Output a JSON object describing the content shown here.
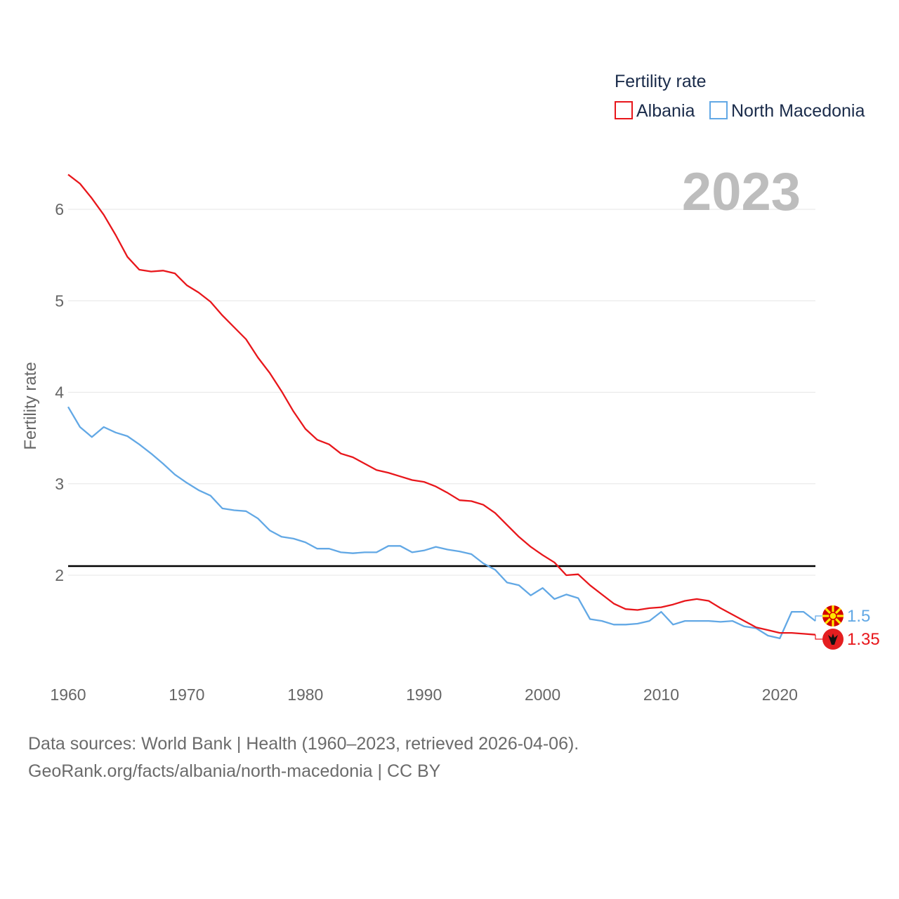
{
  "chart_data": {
    "type": "line",
    "title": "Fertility rate",
    "current_year": "2023",
    "ylabel": "Fertility rate",
    "xlabel": "",
    "xlim": [
      1960,
      2023
    ],
    "ylim": [
      1,
      6.5
    ],
    "yticks": [
      2,
      3,
      4,
      5,
      6
    ],
    "xticks": [
      1960,
      1970,
      1980,
      1990,
      2000,
      2010,
      2020
    ],
    "reference_line": 2.1,
    "x": [
      1960,
      1961,
      1962,
      1963,
      1964,
      1965,
      1966,
      1967,
      1968,
      1969,
      1970,
      1971,
      1972,
      1973,
      1974,
      1975,
      1976,
      1977,
      1978,
      1979,
      1980,
      1981,
      1982,
      1983,
      1984,
      1985,
      1986,
      1987,
      1988,
      1989,
      1990,
      1991,
      1992,
      1993,
      1994,
      1995,
      1996,
      1997,
      1998,
      1999,
      2000,
      2001,
      2002,
      2003,
      2004,
      2005,
      2006,
      2007,
      2008,
      2009,
      2010,
      2011,
      2012,
      2013,
      2014,
      2015,
      2016,
      2017,
      2018,
      2019,
      2020,
      2021,
      2022,
      2023
    ],
    "series": [
      {
        "name": "Albania",
        "color": "#e8161b",
        "end_label": "1.35",
        "values": [
          6.38,
          6.28,
          6.12,
          5.94,
          5.72,
          5.48,
          5.34,
          5.32,
          5.33,
          5.3,
          5.17,
          5.09,
          4.99,
          4.84,
          4.71,
          4.58,
          4.38,
          4.21,
          4.01,
          3.79,
          3.6,
          3.48,
          3.43,
          3.33,
          3.29,
          3.22,
          3.15,
          3.12,
          3.08,
          3.04,
          3.02,
          2.97,
          2.9,
          2.82,
          2.81,
          2.77,
          2.68,
          2.55,
          2.42,
          2.31,
          2.22,
          2.14,
          2.0,
          2.01,
          1.89,
          1.79,
          1.69,
          1.63,
          1.62,
          1.64,
          1.65,
          1.68,
          1.72,
          1.74,
          1.72,
          1.64,
          1.57,
          1.5,
          1.43,
          1.4,
          1.37,
          1.37,
          1.36,
          1.35
        ]
      },
      {
        "name": "North Macedonia",
        "color": "#62a8e5",
        "end_label": "1.5",
        "values": [
          3.84,
          3.62,
          3.51,
          3.62,
          3.56,
          3.52,
          3.43,
          3.33,
          3.22,
          3.1,
          3.01,
          2.93,
          2.87,
          2.73,
          2.71,
          2.7,
          2.62,
          2.49,
          2.42,
          2.4,
          2.36,
          2.29,
          2.29,
          2.25,
          2.24,
          2.25,
          2.25,
          2.32,
          2.32,
          2.25,
          2.27,
          2.31,
          2.28,
          2.26,
          2.23,
          2.13,
          2.06,
          1.92,
          1.89,
          1.78,
          1.86,
          1.74,
          1.79,
          1.75,
          1.52,
          1.5,
          1.46,
          1.46,
          1.47,
          1.5,
          1.6,
          1.46,
          1.5,
          1.5,
          1.5,
          1.49,
          1.5,
          1.44,
          1.42,
          1.34,
          1.31,
          1.6,
          1.6,
          1.5
        ]
      }
    ],
    "legend_position": "top-right"
  },
  "footer": {
    "line1": "Data sources: World Bank | Health (1960–2023, retrieved 2026-04-06).",
    "line2": "GeoRank.org/facts/albania/north-macedonia | CC BY"
  }
}
